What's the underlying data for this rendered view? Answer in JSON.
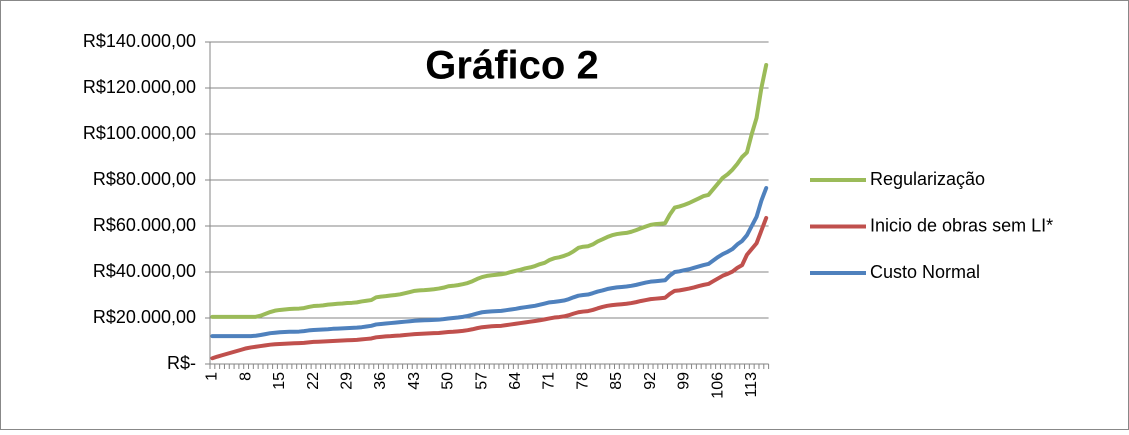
{
  "chart_data": {
    "type": "line",
    "title": "Gráfico 2",
    "categories": [
      1,
      null,
      null,
      null,
      null,
      null,
      null,
      8,
      null,
      null,
      null,
      null,
      null,
      null,
      15,
      null,
      null,
      null,
      null,
      null,
      null,
      22,
      null,
      null,
      null,
      null,
      null,
      null,
      29,
      null,
      null,
      null,
      null,
      null,
      null,
      36,
      null,
      null,
      null,
      null,
      null,
      null,
      43,
      null,
      null,
      null,
      null,
      null,
      null,
      50,
      null,
      null,
      null,
      null,
      null,
      null,
      57,
      null,
      null,
      null,
      null,
      null,
      null,
      64,
      null,
      null,
      null,
      null,
      null,
      null,
      71,
      null,
      null,
      null,
      null,
      null,
      null,
      78,
      null,
      null,
      null,
      null,
      null,
      null,
      85,
      null,
      null,
      null,
      null,
      null,
      null,
      92,
      null,
      null,
      null,
      null,
      null,
      null,
      99,
      null,
      null,
      null,
      null,
      null,
      null,
      106,
      null,
      null,
      null,
      null,
      null,
      null,
      113,
      null,
      null,
      null
    ],
    "series": [
      {
        "name": "Regularização",
        "color": "#9bbb59",
        "values": [
          20500,
          20500,
          20500,
          20500,
          20500,
          20500,
          20500,
          20500,
          20500,
          20500,
          21000,
          21800,
          22600,
          23200,
          23500,
          23700,
          23900,
          24000,
          24100,
          24300,
          24800,
          25200,
          25300,
          25500,
          25800,
          26000,
          26200,
          26300,
          26500,
          26600,
          26800,
          27200,
          27500,
          27800,
          29000,
          29300,
          29500,
          29800,
          30000,
          30300,
          30800,
          31300,
          31800,
          32000,
          32100,
          32300,
          32500,
          32800,
          33200,
          33800,
          34000,
          34300,
          34700,
          35200,
          36000,
          37000,
          37800,
          38300,
          38600,
          38800,
          39000,
          39400,
          40000,
          40500,
          41000,
          41600,
          42000,
          42600,
          43400,
          44000,
          45200,
          46000,
          46400,
          47000,
          47800,
          49000,
          50500,
          51000,
          51200,
          52000,
          53300,
          54200,
          55200,
          56000,
          56500,
          56800,
          57000,
          57500,
          58200,
          59000,
          59800,
          60500,
          60800,
          61000,
          61200,
          65000,
          68000,
          68500,
          69200,
          70000,
          71000,
          72000,
          73000,
          73500,
          76000,
          78500,
          81000,
          82500,
          84500,
          87000,
          90000,
          92000,
          100000,
          107000,
          120000,
          130000
        ]
      },
      {
        "name": "Inicio de obras sem LI*",
        "color": "#c0504d",
        "values": [
          2500,
          3200,
          3800,
          4400,
          5000,
          5600,
          6200,
          6800,
          7200,
          7500,
          7800,
          8100,
          8400,
          8600,
          8700,
          8800,
          8900,
          9000,
          9100,
          9200,
          9400,
          9600,
          9700,
          9800,
          9900,
          10000,
          10100,
          10200,
          10300,
          10400,
          10500,
          10700,
          10900,
          11100,
          11600,
          11800,
          12000,
          12100,
          12300,
          12400,
          12600,
          12800,
          13000,
          13100,
          13200,
          13300,
          13400,
          13500,
          13700,
          13900,
          14000,
          14200,
          14400,
          14700,
          15100,
          15600,
          16000,
          16200,
          16400,
          16500,
          16600,
          16900,
          17200,
          17500,
          17800,
          18100,
          18400,
          18700,
          19000,
          19400,
          19800,
          20200,
          20400,
          20700,
          21200,
          21900,
          22500,
          22800,
          23000,
          23500,
          24200,
          24800,
          25300,
          25600,
          25800,
          26000,
          26200,
          26500,
          26900,
          27400,
          27800,
          28200,
          28400,
          28600,
          28800,
          30500,
          31800,
          32000,
          32400,
          32800,
          33300,
          33900,
          34400,
          34800,
          36000,
          37200,
          38400,
          39200,
          40200,
          41800,
          43000,
          47500,
          50000,
          52500,
          58000,
          63500
        ]
      },
      {
        "name": "Custo Normal",
        "color": "#4f81bd",
        "values": [
          12100,
          12100,
          12100,
          12100,
          12100,
          12100,
          12100,
          12100,
          12100,
          12300,
          12600,
          13000,
          13400,
          13600,
          13800,
          13900,
          14000,
          14000,
          14100,
          14300,
          14600,
          14800,
          14900,
          15000,
          15100,
          15300,
          15400,
          15500,
          15600,
          15700,
          15800,
          16000,
          16300,
          16600,
          17200,
          17400,
          17600,
          17800,
          18000,
          18200,
          18400,
          18600,
          18800,
          18900,
          19000,
          19100,
          19200,
          19300,
          19500,
          19800,
          20000,
          20200,
          20500,
          20900,
          21400,
          22000,
          22500,
          22700,
          22900,
          23000,
          23100,
          23400,
          23700,
          24000,
          24400,
          24700,
          25000,
          25300,
          25800,
          26300,
          26800,
          27000,
          27300,
          27600,
          28200,
          29000,
          29700,
          30000,
          30200,
          30800,
          31500,
          32000,
          32600,
          33000,
          33300,
          33500,
          33700,
          34000,
          34400,
          34900,
          35400,
          35800,
          36000,
          36200,
          36400,
          38500,
          40000,
          40300,
          40800,
          41200,
          41800,
          42400,
          43000,
          43500,
          45000,
          46500,
          47800,
          48800,
          50000,
          52000,
          53500,
          56000,
          60000,
          64000,
          71000,
          76500
        ]
      }
    ],
    "ylim": [
      0,
      140000
    ],
    "yticks": [
      {
        "value": 0,
        "label": "R$-"
      },
      {
        "value": 20000,
        "label": "R$20.000,00"
      },
      {
        "value": 40000,
        "label": "R$40.000,00"
      },
      {
        "value": 60000,
        "label": "R$60.000,00"
      },
      {
        "value": 80000,
        "label": "R$80.000,00"
      },
      {
        "value": 100000,
        "label": "R$100.000,00"
      },
      {
        "value": 120000,
        "label": "R$120.000,00"
      },
      {
        "value": 140000,
        "label": "R$140.000,00"
      }
    ],
    "grid": true,
    "legend": "right"
  }
}
